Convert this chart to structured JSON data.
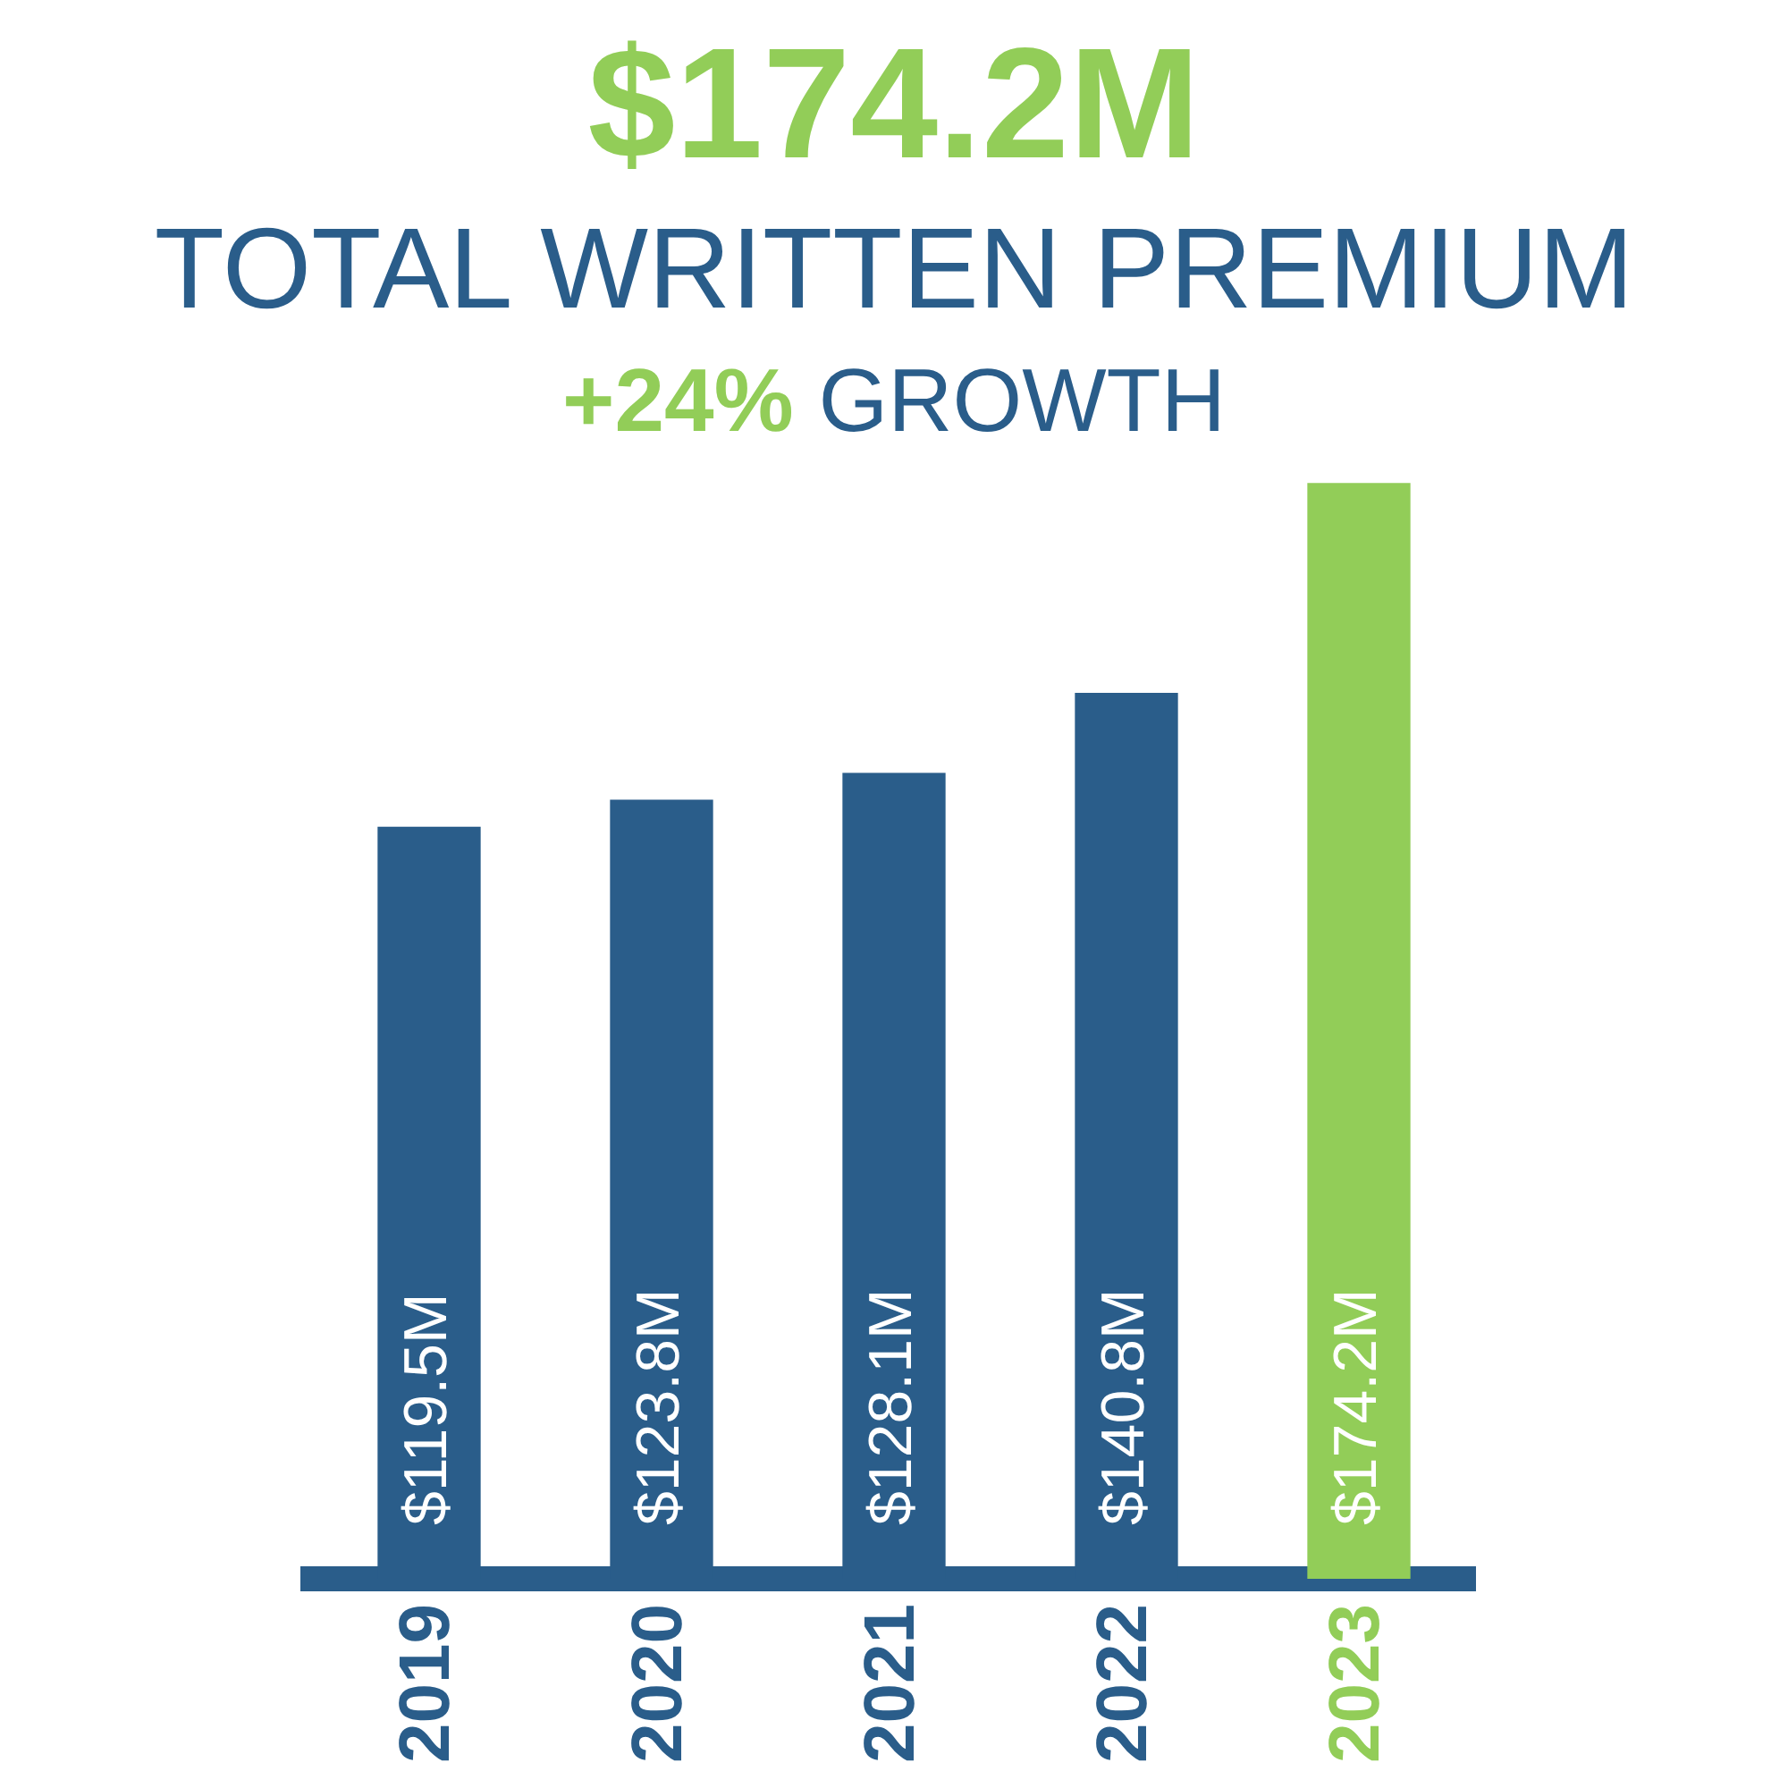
{
  "chart_data": {
    "type": "bar",
    "title": "$174.2M",
    "subtitle": "TOTAL WRITTEN PREMIUM",
    "annotations": [
      "+24% GROWTH"
    ],
    "categories": [
      "2019",
      "2020",
      "2021",
      "2022",
      "2023"
    ],
    "values": [
      119.5,
      123.8,
      128.1,
      140.8,
      174.2
    ],
    "colors": [
      "#2a5d8a",
      "#2a5d8a",
      "#2a5d8a",
      "#2a5d8a",
      "#92cd58"
    ],
    "value_labels": [
      "$119.5M",
      "$123.8M",
      "$128.1M",
      "$140.8M",
      "$174.2M"
    ],
    "tick_labels": "x",
    "grid": false,
    "legend": false
  }
}
